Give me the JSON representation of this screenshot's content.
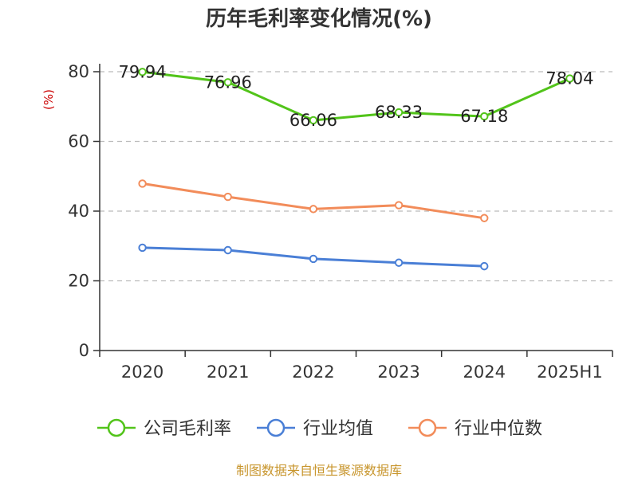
{
  "chart_data": {
    "type": "line",
    "title": "历年毛利率变化情况(%)",
    "ylabel": "(%)",
    "xlabel": "",
    "ylim": [
      0,
      80
    ],
    "yticks": [
      0,
      20,
      40,
      60,
      80
    ],
    "grid": true,
    "legend_position": "bottom",
    "categories": [
      "2020",
      "2021",
      "2022",
      "2023",
      "2024",
      "2025H1"
    ],
    "series": [
      {
        "name": "公司毛利率",
        "color": "#52c41a",
        "values": [
          79.94,
          76.96,
          66.06,
          68.33,
          67.18,
          78.04
        ],
        "labels": [
          "79.94",
          "76.96",
          "66.06",
          "68.33",
          "67.18",
          "78.04"
        ]
      },
      {
        "name": "行业均值",
        "color": "#4a7fd6",
        "values": [
          29.5,
          28.8,
          26.3,
          25.2,
          24.2,
          null
        ]
      },
      {
        "name": "行业中位数",
        "color": "#f28c5a",
        "values": [
          47.9,
          44.1,
          40.6,
          41.7,
          38.0,
          null
        ]
      }
    ]
  },
  "source": "制图数据来自恒生聚源数据库"
}
